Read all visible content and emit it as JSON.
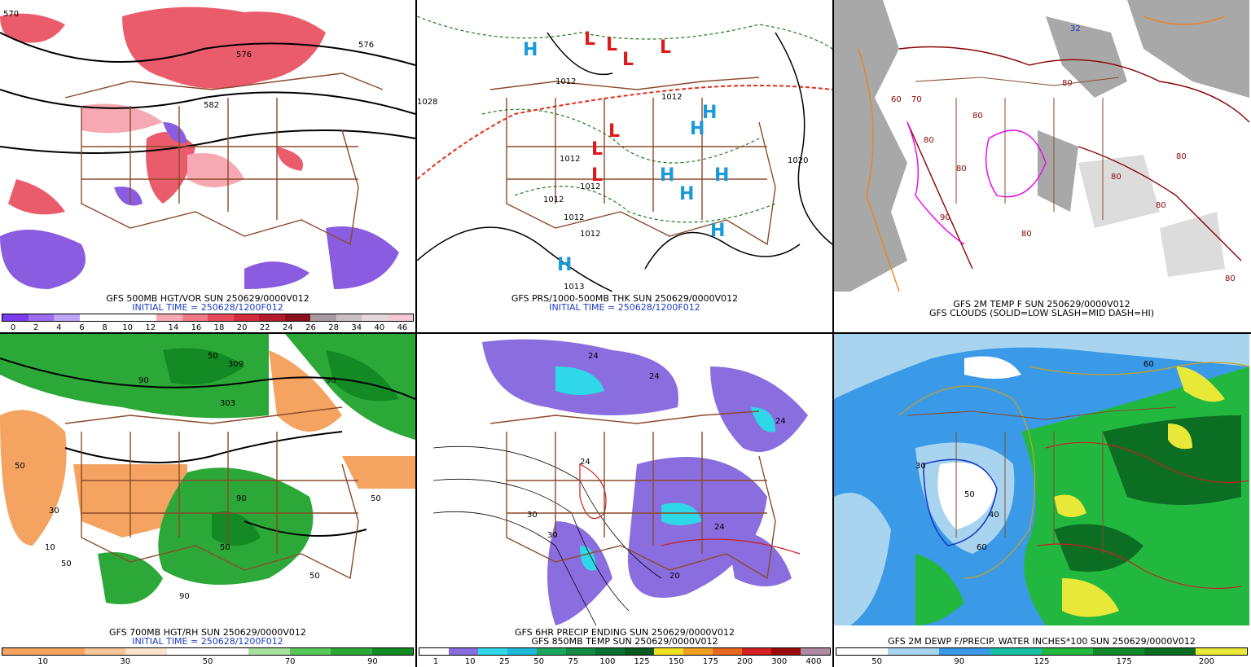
{
  "panels": {
    "p1": {
      "caption1": "GFS 500MB HGT/VOR SUN 250629/0000V012",
      "caption2": "INITIAL TIME = 250628/1200F012",
      "labels": [
        "570",
        "576",
        "582",
        "576"
      ],
      "colorbar": {
        "colors": [
          "#7a3cf0",
          "#9b6cf0",
          "#c0a4f5",
          "#ffffff",
          "#ffffff",
          "#ffffff",
          "#f6a9b2",
          "#f07a86",
          "#e84a5c",
          "#d42a3e",
          "#b41c2c",
          "#8c0f1c",
          "#a89aa0",
          "#c9c0c4",
          "#e4d8dc",
          "#f2c9d4"
        ],
        "ticks": [
          "0",
          "2",
          "4",
          "6",
          "8",
          "10",
          "12",
          "14",
          "16",
          "18",
          "20",
          "22",
          "24",
          "26",
          "28",
          "34",
          "40",
          "46"
        ]
      }
    },
    "p2": {
      "caption1": "GFS PRS/1000-500MB THK SUN 250629/0000V012",
      "caption2": "INITIAL TIME = 250628/1200F012",
      "labels": [
        "1012",
        "1012",
        "1012",
        "1012",
        "1020",
        "1012",
        "1012",
        "1013",
        "1012",
        "1028"
      ]
    },
    "p3": {
      "caption1": "GFS 2M TEMP F SUN 250629/0000V012",
      "caption2": "GFS CLOUDS (SOLID=LOW SLASH=MID DASH=HI)",
      "labels": [
        "80",
        "80",
        "70",
        "60",
        "80",
        "80",
        "80",
        "80",
        "80",
        "80",
        "32",
        "90",
        "80"
      ]
    },
    "p4": {
      "caption1": "GFS 700MB HGT/RH SUN 250629/0000V012",
      "caption2": "INITIAL TIME = 250628/1200F012",
      "labels": [
        "50",
        "90",
        "50",
        "90",
        "30",
        "50",
        "10",
        "50",
        "90",
        "50",
        "50",
        "90",
        "303",
        "309"
      ],
      "colorbar": {
        "colors": [
          "#f4a460",
          "#f4a460",
          "#f7c79a",
          "#fbe3cc",
          "#ffffff",
          "#ffffff",
          "#a8e0a0",
          "#58c85a",
          "#2ca838",
          "#138a24"
        ],
        "ticks": [
          "10",
          "30",
          "50",
          "70",
          "90"
        ]
      }
    },
    "p5": {
      "caption1": "GFS 6HR PRECIP ENDING SUN 250629/0000V012",
      "caption2": "GFS 850MB TEMP SUN 250629/0000V012",
      "labels": [
        "24",
        "24",
        "30",
        "30",
        "24",
        "20",
        "24",
        "24"
      ],
      "colorbar": {
        "colors": [
          "#ffffff",
          "#8a6ee0",
          "#2fd8e8",
          "#20b8d8",
          "#1aa860",
          "#128a40",
          "#0c7030",
          "#0a5a20",
          "#f0e020",
          "#f0a020",
          "#e86820",
          "#d42020",
          "#9a0a0a",
          "#b08aa0"
        ],
        "ticks": [
          "1",
          "10",
          "25",
          "50",
          "75",
          "100",
          "125",
          "150",
          "175",
          "200",
          "300",
          "400"
        ]
      }
    },
    "p6": {
      "caption1": "GFS 2M DEWP F/PRECIP. WATER INCHES*100 SUN 250629/0000V012",
      "labels": [
        "50",
        "60",
        "60",
        "30",
        "40"
      ],
      "colorbar": {
        "colors": [
          "#ffffff",
          "#a8d4f0",
          "#3a9ae8",
          "#16c0a0",
          "#22b840",
          "#11882a",
          "#0c6e22",
          "#e8e838"
        ],
        "ticks": [
          "50",
          "90",
          "125",
          "175",
          "200"
        ]
      }
    }
  },
  "colors": {
    "vort": "#e84a5c",
    "vort_neg": "#8a5ce0",
    "borders": "#8a4a2a",
    "high": "#1a9ad8",
    "low": "#dd1a1a",
    "thickness": "#1f7a1f",
    "caption_blue": "#1a3cc7"
  }
}
